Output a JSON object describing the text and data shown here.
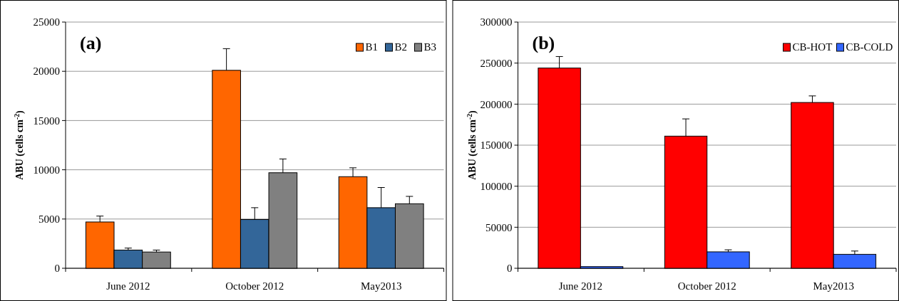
{
  "chart_data": [
    {
      "type": "bar",
      "title": "(a)",
      "ylabel": "ABU (cells cm$^{-2}$)",
      "categories": [
        "June 2012",
        "October 2012",
        "May2013"
      ],
      "ylim": [
        0,
        25000
      ],
      "yticks": [
        0,
        5000,
        10000,
        15000,
        20000,
        25000
      ],
      "grid": "y",
      "legend": "top right",
      "series": [
        {
          "name": "B1",
          "color": "#ff6600",
          "values": [
            4700,
            20100,
            9300
          ],
          "errors": [
            [
              4700,
              5300
            ],
            [
              20100,
              22300
            ],
            [
              9300,
              10200
            ]
          ]
        },
        {
          "name": "B2",
          "color": "#336699",
          "values": [
            1850,
            4950,
            6150
          ],
          "errors": [
            [
              1850,
              2050
            ],
            [
              4950,
              6150
            ],
            [
              6150,
              8200
            ]
          ]
        },
        {
          "name": "B3",
          "color": "#808080",
          "values": [
            1650,
            9700,
            6550
          ],
          "errors": [
            [
              1650,
              1850
            ],
            [
              9700,
              11100
            ],
            [
              6550,
              7300
            ]
          ]
        }
      ]
    },
    {
      "type": "bar",
      "title": "(b)",
      "ylabel": "ABU (cells cm$^{-2}$)",
      "categories": [
        "June 2012",
        "October 2012",
        "May2013"
      ],
      "ylim": [
        0,
        300000
      ],
      "yticks": [
        0,
        50000,
        100000,
        150000,
        200000,
        250000,
        300000
      ],
      "grid": "y",
      "legend": "top right",
      "series": [
        {
          "name": "CB-HOT",
          "color": "#ff0000",
          "values": [
            244000,
            161000,
            202000
          ],
          "errors": [
            [
              244000,
              258000
            ],
            [
              161000,
              182000
            ],
            [
              202000,
              210000
            ]
          ]
        },
        {
          "name": "CB-COLD",
          "color": "#3366ff",
          "values": [
            2000,
            20000,
            17000
          ],
          "errors": [
            null,
            [
              20000,
              22500
            ],
            [
              17000,
              21000
            ]
          ]
        }
      ]
    }
  ]
}
